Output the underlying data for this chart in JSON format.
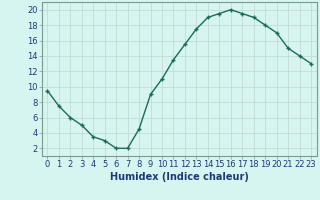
{
  "x": [
    0,
    1,
    2,
    3,
    4,
    5,
    6,
    7,
    8,
    9,
    10,
    11,
    12,
    13,
    14,
    15,
    16,
    17,
    18,
    19,
    20,
    21,
    22,
    23
  ],
  "y": [
    9.5,
    7.5,
    6,
    5,
    3.5,
    3,
    2,
    2,
    4.5,
    9,
    11,
    13.5,
    15.5,
    17.5,
    19,
    19.5,
    20,
    19.5,
    19,
    18,
    17,
    15,
    14,
    13
  ],
  "line_color": "#1a6b5a",
  "marker": "+",
  "marker_size": 3,
  "bg_color": "#d7f5f0",
  "grid_color": "#c0d8d0",
  "xlabel": "Humidex (Indice chaleur)",
  "xlabel_fontsize": 7,
  "xlabel_color": "#1a3a7a",
  "yticks": [
    2,
    4,
    6,
    8,
    10,
    12,
    14,
    16,
    18,
    20
  ],
  "xlim": [
    -0.5,
    23.5
  ],
  "ylim": [
    1,
    21
  ],
  "tick_fontsize": 6,
  "line_width": 1.0
}
